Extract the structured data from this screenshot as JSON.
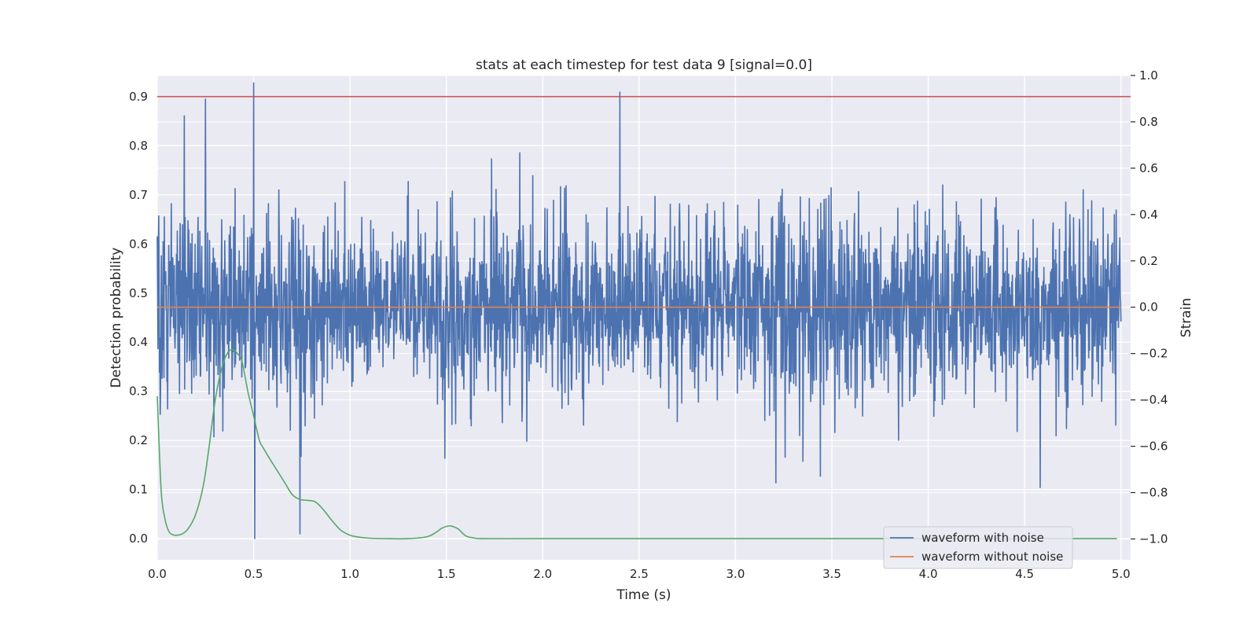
{
  "chart_data": {
    "type": "line",
    "title": "stats at each timestep for test data 9 [signal=0.0]",
    "xlabel": "Time (s)",
    "ylabel_left": "Detection probability",
    "ylabel_right": "Strain",
    "xlim": [
      0.0,
      5.05
    ],
    "ylim_left": [
      -0.043,
      0.943
    ],
    "ylim_right": [
      -1.09,
      1.0
    ],
    "x_ticks": [
      "0.0",
      "0.5",
      "1.0",
      "1.5",
      "2.0",
      "2.5",
      "3.0",
      "3.5",
      "4.0",
      "4.5",
      "5.0"
    ],
    "y_left_ticks": [
      "0.0",
      "0.1",
      "0.2",
      "0.3",
      "0.4",
      "0.5",
      "0.6",
      "0.7",
      "0.8",
      "0.9"
    ],
    "y_right_ticks": [
      "−1.0",
      "−0.8",
      "−0.6",
      "−0.4",
      "−0.2",
      "0.0",
      "0.2",
      "0.4",
      "0.6",
      "0.8",
      "1.0"
    ],
    "grid": true,
    "legend_position": "lower-right",
    "series": [
      {
        "name": "waveform with noise",
        "axis": "right",
        "color": "#4c72b0",
        "kind": "noise",
        "x_range": [
          0.0,
          5.0
        ],
        "amplitude_range": [
          -1.0,
          0.9
        ],
        "spikes": [
          {
            "x": 0.25,
            "y": 0.9
          },
          {
            "x": 0.5,
            "y": 0.97
          },
          {
            "x": 0.505,
            "y": -1.0
          },
          {
            "x": 0.74,
            "y": -0.98
          },
          {
            "x": 2.4,
            "y": 0.93
          },
          {
            "x": 3.21,
            "y": -0.76
          },
          {
            "x": 4.58,
            "y": -0.78
          }
        ]
      },
      {
        "name": "waveform without noise",
        "axis": "right",
        "color": "#dd8452",
        "x": [
          0.0,
          5.0
        ],
        "y": [
          0.0,
          0.0
        ]
      },
      {
        "axis": "left",
        "color": "#55a868",
        "x": [
          0.0,
          0.02,
          0.04,
          0.06,
          0.08,
          0.1,
          0.13,
          0.16,
          0.2,
          0.24,
          0.27,
          0.3,
          0.33,
          0.36,
          0.39,
          0.42,
          0.44,
          0.47,
          0.5,
          0.53,
          0.55,
          0.58,
          0.62,
          0.66,
          0.7,
          0.74,
          0.78,
          0.82,
          0.86,
          0.9,
          0.95,
          1.0,
          1.05,
          1.1,
          1.2,
          1.3,
          1.4,
          1.45,
          1.48,
          1.52,
          1.56,
          1.6,
          1.65,
          1.7,
          2.0,
          3.0,
          4.0,
          4.98
        ],
        "y": [
          0.29,
          0.1,
          0.04,
          0.015,
          0.008,
          0.007,
          0.01,
          0.02,
          0.05,
          0.11,
          0.19,
          0.28,
          0.34,
          0.375,
          0.385,
          0.375,
          0.36,
          0.3,
          0.25,
          0.2,
          0.185,
          0.165,
          0.14,
          0.115,
          0.09,
          0.08,
          0.078,
          0.075,
          0.06,
          0.04,
          0.018,
          0.007,
          0.003,
          0.001,
          0.0,
          0.0,
          0.004,
          0.014,
          0.022,
          0.026,
          0.02,
          0.006,
          0.001,
          0.0,
          0.0,
          0.0,
          0.0,
          0.0
        ]
      },
      {
        "axis": "left",
        "color": "#c44e52",
        "x": [
          0.0,
          5.05
        ],
        "y": [
          0.9,
          0.9
        ]
      }
    ]
  }
}
